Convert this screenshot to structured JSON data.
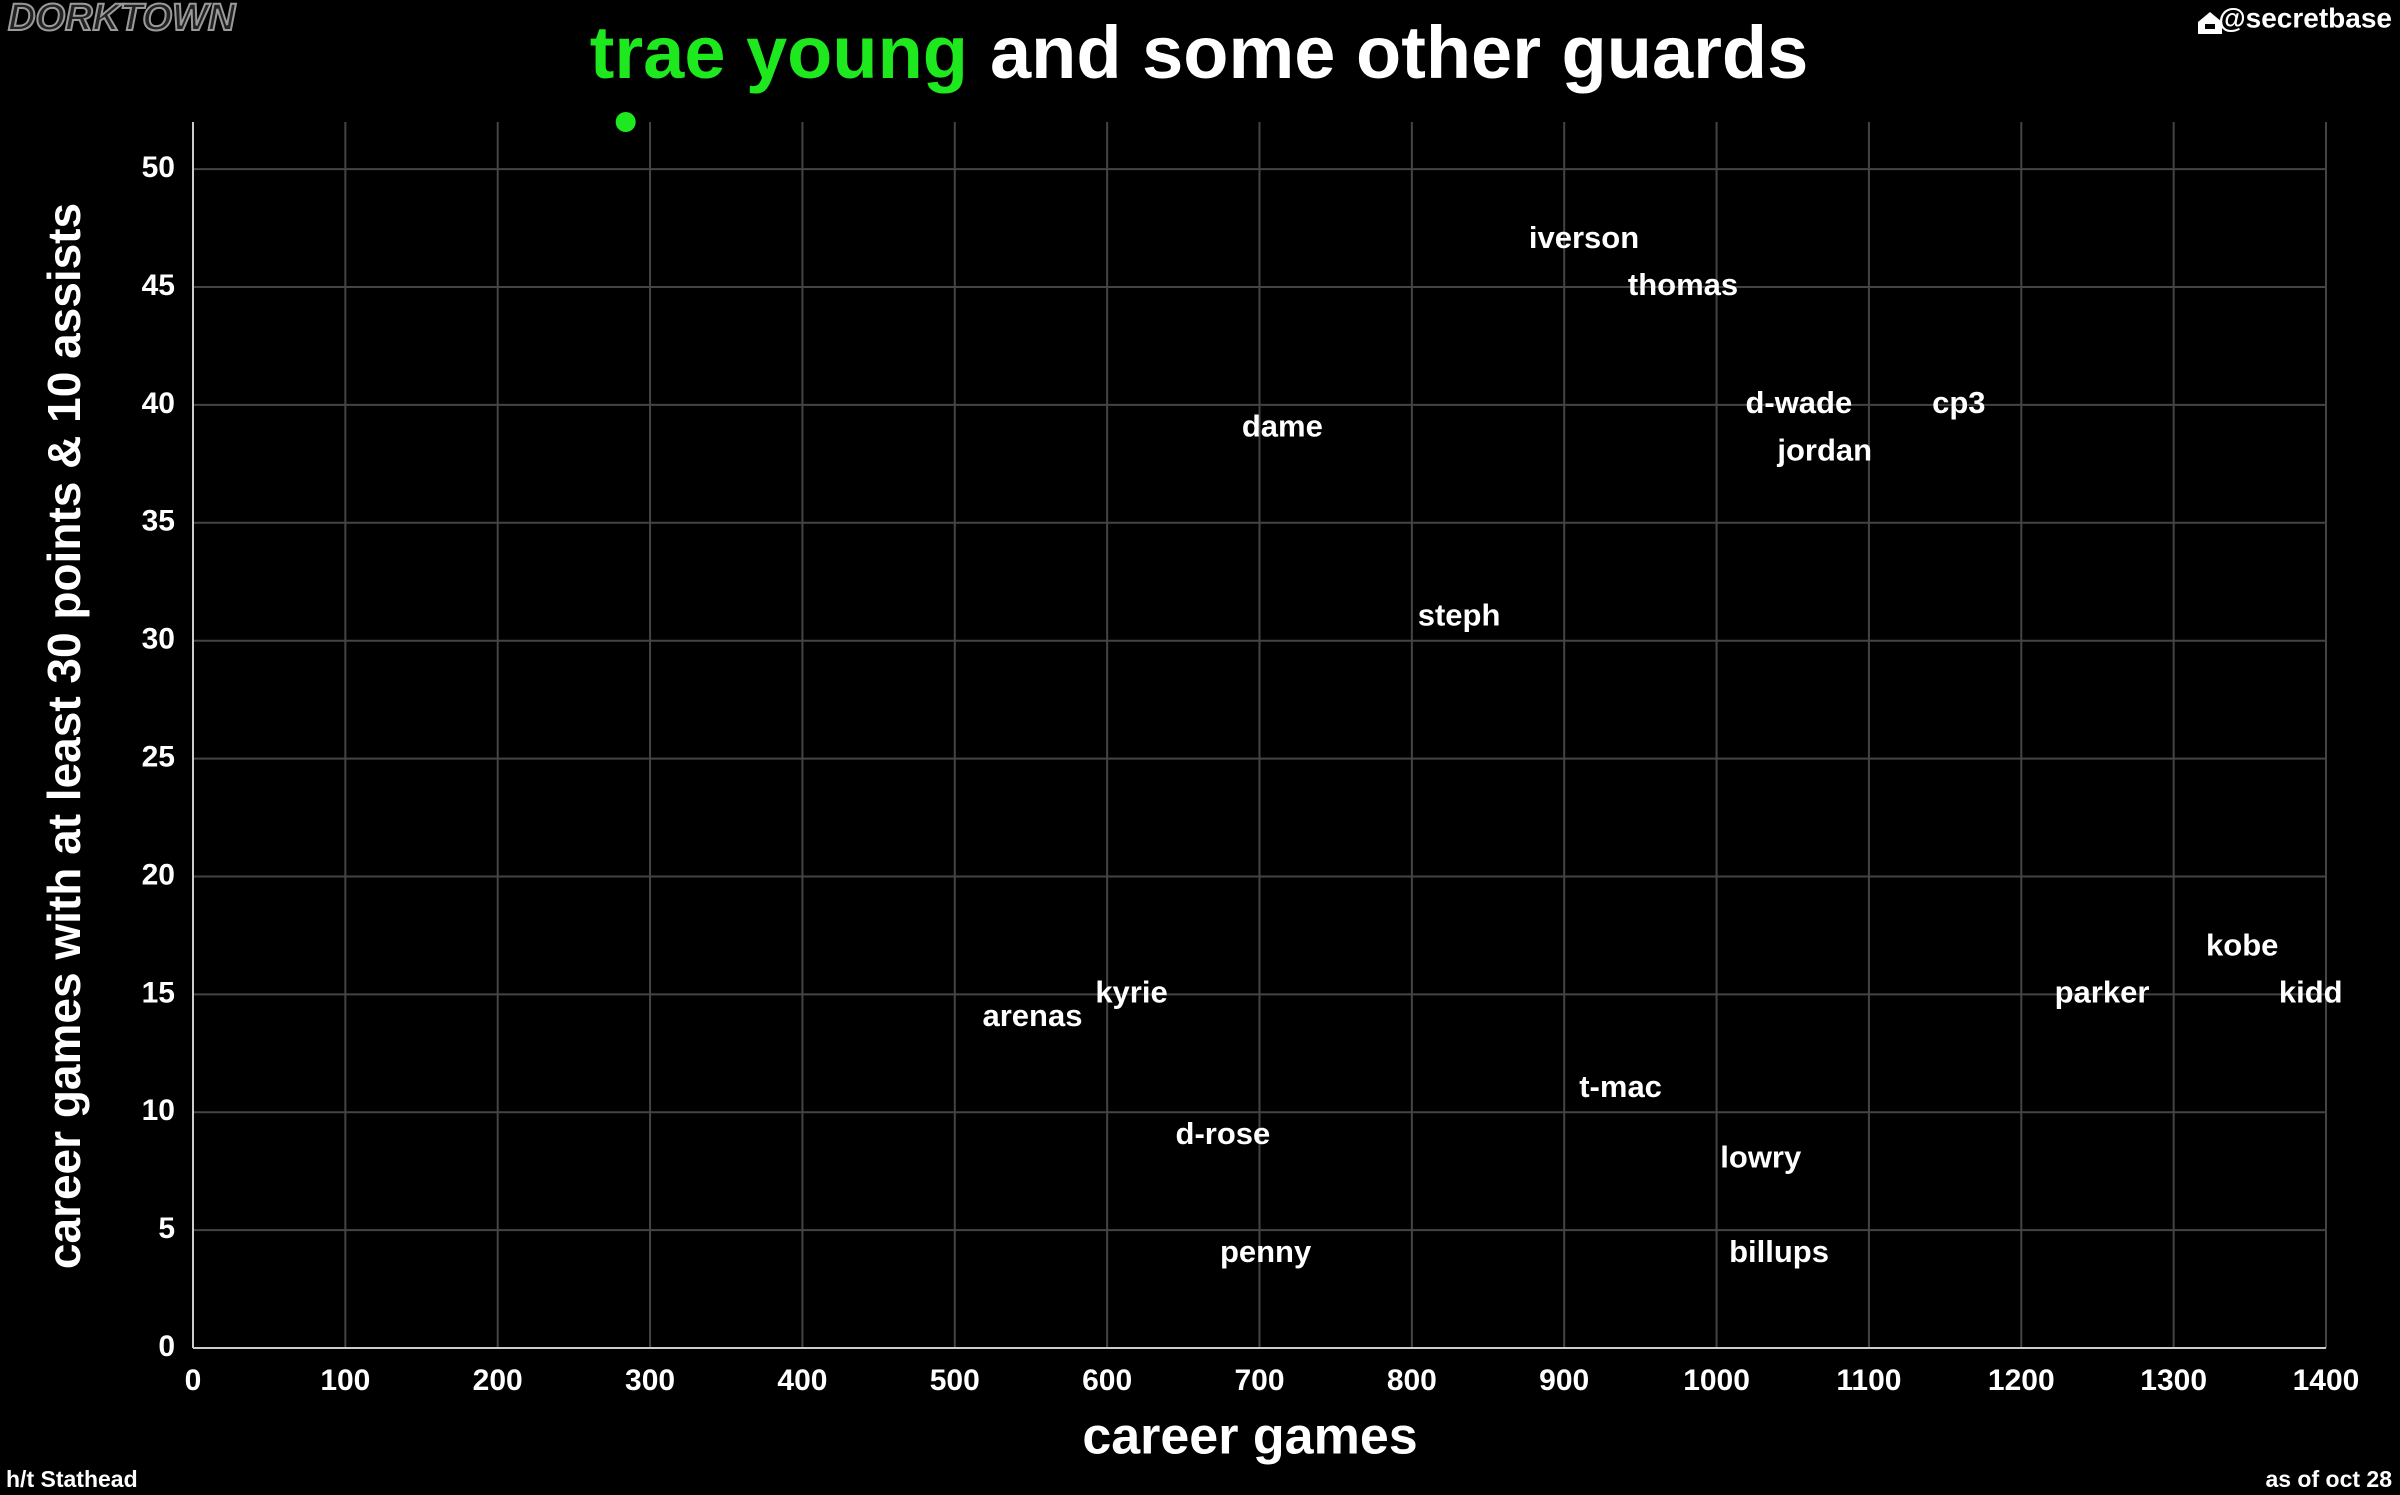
{
  "chart_data": {
    "type": "scatter",
    "title_highlight": "trae young",
    "title": "and some other guards",
    "watermark": "DORKTOWN",
    "handle": "@secretbase",
    "source": "h/t Stathead",
    "date_note": "as of oct 28",
    "x_label": "career games",
    "y_label": "career games with at least 30 points & 10 assists",
    "highlight": {
      "x": 284,
      "y": 52,
      "color": "#1ee81e"
    },
    "points": {
      "labels": [
        "iverson",
        "thomas",
        "d-wade",
        "cp3",
        "jordan",
        "dame",
        "steph",
        "kobe",
        "parker",
        "kidd",
        "kyrie",
        "arenas",
        "t-mac",
        "d-rose",
        "lowry",
        "penny",
        "billups"
      ],
      "x": [
        913,
        978,
        1054,
        1159,
        1071,
        715,
        831,
        1345,
        1253,
        1390,
        616,
        551,
        937,
        676,
        1029,
        704,
        1041
      ],
      "y": [
        47,
        45,
        40,
        40,
        38,
        39,
        31,
        17,
        15,
        15,
        15,
        14,
        11,
        9,
        8,
        4,
        4
      ],
      "color": "#ffffff"
    },
    "xlim": [
      0,
      1400
    ],
    "ylim": [
      0,
      52
    ],
    "xticks": [
      0,
      100,
      200,
      300,
      400,
      500,
      600,
      700,
      800,
      900,
      1000,
      1100,
      1200,
      1300,
      1400
    ],
    "yticks": [
      0,
      5,
      10,
      15,
      20,
      25,
      30,
      35,
      40,
      45,
      50
    ],
    "grid": true
  }
}
